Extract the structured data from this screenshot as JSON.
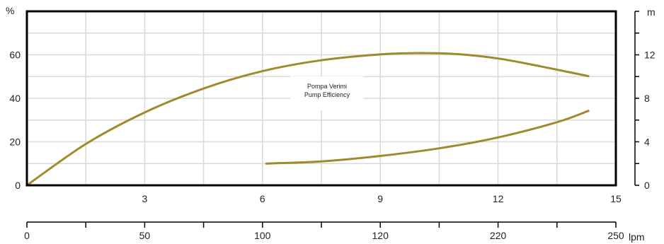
{
  "chart_data": {
    "type": "line",
    "title": "",
    "annotation": [
      "Pompa Verimi",
      "Pump Efficiency"
    ],
    "left_axis": {
      "unit": "%",
      "ylim": [
        0,
        80
      ],
      "ticks": [
        "0",
        "20",
        "40",
        "60"
      ]
    },
    "right_axis": {
      "unit": "m",
      "ylim": [
        0,
        16
      ],
      "ticks": [
        "0",
        "4",
        "8",
        "12"
      ]
    },
    "x_axis": {
      "xlim": [
        0,
        15
      ],
      "ticks": [
        "3",
        "6",
        "9",
        "12",
        "15"
      ]
    },
    "secondary_x_axis": {
      "unit": "lpm",
      "ticks": [
        "0",
        "50",
        "100",
        "120",
        "220",
        "250"
      ]
    },
    "grid": true,
    "colors": {
      "curve": "#a08a2e",
      "frame": "#000000",
      "grid": "#d9d9d9"
    },
    "series": [
      {
        "axis": "left",
        "x": [
          0,
          1.5,
          3,
          4.5,
          6,
          7.5,
          9,
          10,
          11,
          12,
          13,
          14.3
        ],
        "values": [
          0,
          19,
          33.5,
          44.5,
          52.5,
          57.5,
          60.2,
          60.8,
          60.3,
          58.3,
          55,
          50.2
        ]
      },
      {
        "axis": "right",
        "x": [
          6.1,
          7.5,
          9,
          10.5,
          12,
          13.5,
          14.3
        ],
        "values": [
          2.0,
          2.2,
          2.7,
          3.4,
          4.4,
          5.8,
          6.85
        ]
      }
    ]
  }
}
